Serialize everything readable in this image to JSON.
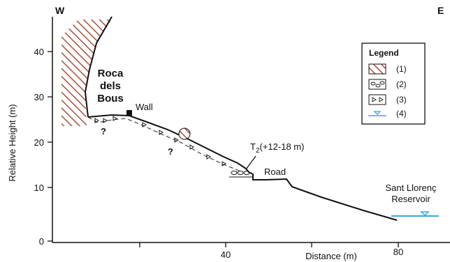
{
  "diagram": {
    "orientation": {
      "west": "W",
      "east": "E"
    },
    "y_axis": {
      "label": "Relative Height (m)",
      "ticks": [
        "0",
        "10",
        "20",
        "30",
        "40"
      ]
    },
    "x_axis": {
      "label": "Distance (m)",
      "ticks": [
        "40",
        "80"
      ]
    },
    "place_labels": {
      "roca_line1": "Roca",
      "roca_line2": "dels",
      "roca_line3": "Bous",
      "wall": "Wall",
      "road": "Road",
      "reservoir_line1": "Sant Llorenç",
      "reservoir_line2": "Reservoir",
      "terrace_main": "T",
      "terrace_sub": "2",
      "terrace_range": "(+12-18 m)",
      "unknown_mark_1": "?",
      "unknown_mark_2": "?"
    },
    "legend": {
      "title": "Legend",
      "items": [
        {
          "key": "(1)",
          "symbol": "hatched-bedrock"
        },
        {
          "key": "(2)",
          "symbol": "rounded-gravel"
        },
        {
          "key": "(3)",
          "symbol": "angular-clasts"
        },
        {
          "key": "(4)",
          "symbol": "water-level"
        }
      ]
    },
    "colors": {
      "hatch": "#a8503c",
      "water": "#39a8d8",
      "ink": "#111111"
    }
  }
}
